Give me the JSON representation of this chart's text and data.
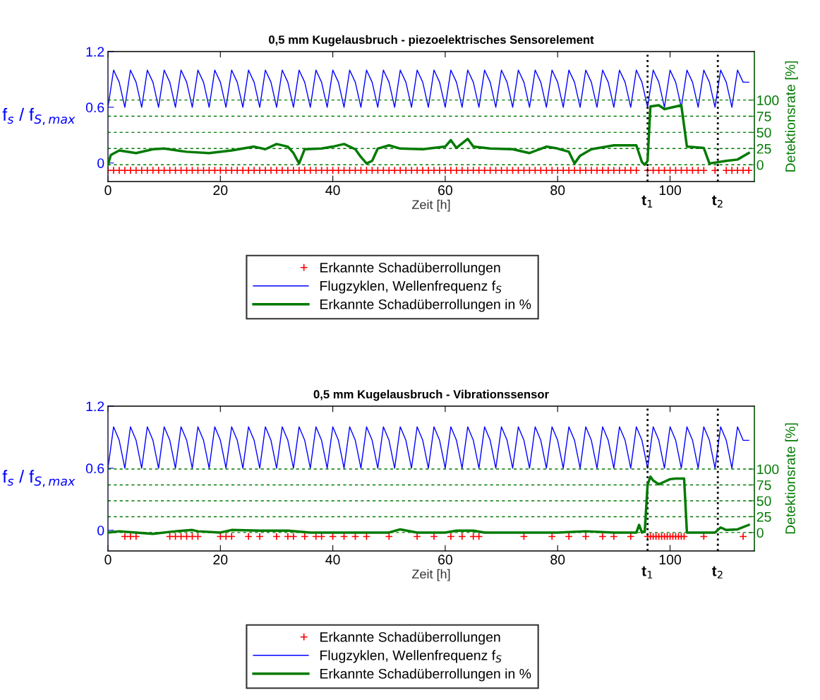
{
  "chart_data": [
    {
      "type": "line",
      "title": "0,5 mm Kugelausbruch - piezoelektrisches Sensorelement",
      "xlabel": "Zeit [h]",
      "ylabel": "f$_{s}$ / f$_{S,max}$",
      "y2label": "Detektionsrate [%]",
      "xlim": [
        0,
        115
      ],
      "xticks": [
        0,
        20,
        40,
        60,
        80,
        100
      ],
      "ylim": [
        -0.2,
        1.2
      ],
      "yticks": [
        0,
        0.6,
        1.2
      ],
      "y2lim": [
        -26,
        175
      ],
      "y2ticks": [
        0,
        25,
        50,
        75,
        100
      ],
      "grid": "y2",
      "legend": "bottom",
      "ref_lines": [
        {
          "axis": "x",
          "value": 96,
          "label": "t$_{1}$",
          "color": "#000000",
          "line_style": "dotted"
        },
        {
          "axis": "x",
          "value": 108.5,
          "label": "t$_{2}$",
          "color": "#000000",
          "line_style": "dotted"
        }
      ],
      "series": [
        {
          "name": "Erkannte Schadüberrollungen",
          "type": "scatter",
          "marker": "cross",
          "color": "#ff0000",
          "x": [
            0,
            1,
            2,
            3,
            4,
            5,
            6,
            7,
            8,
            9,
            10,
            11,
            12,
            13,
            14,
            15,
            16,
            17,
            18,
            19,
            20,
            21,
            22,
            23,
            24,
            25,
            26,
            27,
            28,
            29,
            30,
            31,
            32,
            33,
            34,
            35,
            36,
            37,
            38,
            39,
            40,
            41,
            42,
            43,
            44,
            45,
            46,
            47,
            48,
            49,
            50,
            51,
            52,
            53,
            54,
            55,
            56,
            57,
            58,
            59,
            60,
            61,
            62,
            63,
            64,
            65,
            66,
            67,
            68,
            69,
            70,
            71,
            72,
            73,
            74,
            75,
            76,
            77,
            78,
            79,
            80,
            81,
            82,
            83,
            84,
            85,
            86,
            87,
            88,
            89,
            90,
            91,
            92,
            93,
            94,
            96,
            97,
            98,
            99,
            100,
            101,
            102,
            103,
            104,
            105,
            106,
            108,
            110,
            111,
            112,
            113,
            114
          ],
          "values": [
            -0.08,
            -0.08,
            -0.08,
            -0.08,
            -0.08,
            -0.08,
            -0.08,
            -0.08,
            -0.08,
            -0.08,
            -0.08,
            -0.08,
            -0.08,
            -0.08,
            -0.08,
            -0.08,
            -0.08,
            -0.08,
            -0.08,
            -0.08,
            -0.08,
            -0.08,
            -0.08,
            -0.08,
            -0.08,
            -0.08,
            -0.08,
            -0.08,
            -0.08,
            -0.08,
            -0.08,
            -0.08,
            -0.08,
            -0.08,
            -0.08,
            -0.08,
            -0.08,
            -0.08,
            -0.08,
            -0.08,
            -0.08,
            -0.08,
            -0.08,
            -0.08,
            -0.08,
            -0.08,
            -0.08,
            -0.08,
            -0.08,
            -0.08,
            -0.08,
            -0.08,
            -0.08,
            -0.08,
            -0.08,
            -0.08,
            -0.08,
            -0.08,
            -0.08,
            -0.08,
            -0.08,
            -0.08,
            -0.08,
            -0.08,
            -0.08,
            -0.08,
            -0.08,
            -0.08,
            -0.08,
            -0.08,
            -0.08,
            -0.08,
            -0.08,
            -0.08,
            -0.08,
            -0.08,
            -0.08,
            -0.08,
            -0.08,
            -0.08,
            -0.08,
            -0.08,
            -0.08,
            -0.08,
            -0.08,
            -0.08,
            -0.08,
            -0.08,
            -0.08,
            -0.08,
            -0.08,
            -0.08,
            -0.08,
            -0.08,
            -0.08,
            -0.08,
            -0.08,
            -0.08,
            -0.08,
            -0.08,
            -0.08,
            -0.08,
            -0.08,
            -0.08,
            -0.08,
            -0.08,
            -0.08,
            -0.08,
            -0.08,
            -0.08,
            -0.08,
            -0.08
          ]
        },
        {
          "name": "Flugzyklen, Wellenfrequenz f$_{S}$",
          "type": "line",
          "marker": "none",
          "color": "#0000ff",
          "x": [
            0,
            1,
            2,
            3,
            4,
            5,
            6,
            7,
            8,
            9,
            10,
            11,
            12,
            13,
            14,
            15,
            16,
            17,
            18,
            19,
            20,
            21,
            22,
            23,
            24,
            25,
            26,
            27,
            28,
            29,
            30,
            31,
            32,
            33,
            34,
            35,
            36,
            37,
            38,
            39,
            40,
            41,
            42,
            43,
            44,
            45,
            46,
            47,
            48,
            49,
            50,
            51,
            52,
            53,
            54,
            55,
            56,
            57,
            58,
            59,
            60,
            61,
            62,
            63,
            64,
            65,
            66,
            67,
            68,
            69,
            70,
            71,
            72,
            73,
            74,
            75,
            76,
            77,
            78,
            79,
            80,
            81,
            82,
            83,
            84,
            85,
            86,
            87,
            88,
            89,
            90,
            91,
            92,
            93,
            94,
            95,
            96,
            97,
            98,
            99,
            100,
            101,
            102,
            103,
            104,
            105,
            106,
            107,
            108,
            109,
            110,
            111,
            112,
            113,
            114
          ],
          "values": [
            0.6,
            1.0,
            0.87,
            0.6,
            1.0,
            0.87,
            0.6,
            1.0,
            0.87,
            0.6,
            1.0,
            0.87,
            0.6,
            1.0,
            0.87,
            0.6,
            1.0,
            0.87,
            0.6,
            1.0,
            0.87,
            0.6,
            1.0,
            0.87,
            0.6,
            1.0,
            0.87,
            0.6,
            1.0,
            0.87,
            0.6,
            1.0,
            0.87,
            0.6,
            1.0,
            0.87,
            0.6,
            1.0,
            0.87,
            0.6,
            1.0,
            0.87,
            0.6,
            1.0,
            0.87,
            0.6,
            1.0,
            0.87,
            0.6,
            1.0,
            0.87,
            0.6,
            1.0,
            0.87,
            0.6,
            1.0,
            0.87,
            0.6,
            1.0,
            0.87,
            0.6,
            1.0,
            0.87,
            0.6,
            1.0,
            0.87,
            0.6,
            1.0,
            0.87,
            0.6,
            1.0,
            0.87,
            0.6,
            1.0,
            0.87,
            0.6,
            1.0,
            0.87,
            0.6,
            1.0,
            0.87,
            0.6,
            1.0,
            0.87,
            0.6,
            1.0,
            0.87,
            0.6,
            1.0,
            0.87,
            0.6,
            1.0,
            0.87,
            0.6,
            1.0,
            0.87,
            0.6,
            1.0,
            0.87,
            0.6,
            1.0,
            0.87,
            0.6,
            1.0,
            0.87,
            0.6,
            1.0,
            0.87,
            0.6,
            1.0,
            0.87,
            0.6,
            1.0,
            0.87,
            0.87
          ]
        },
        {
          "name": "Erkannte Schadüberrollungen in %",
          "type": "line",
          "marker": "none",
          "axis": "y2",
          "color": "#007a00",
          "x": [
            0,
            0.5,
            2,
            5,
            8,
            10,
            14,
            18,
            22,
            26,
            28,
            30,
            32,
            33,
            34,
            35,
            38,
            40,
            42,
            44,
            45,
            46,
            47,
            48,
            50,
            52,
            56,
            60,
            61,
            62,
            64,
            65,
            68,
            72,
            75,
            78,
            80,
            82,
            83,
            84,
            86,
            90,
            94,
            95,
            95.5,
            96,
            96.5,
            98,
            99,
            102,
            103,
            106,
            107,
            110,
            112,
            114
          ],
          "values": [
            0,
            15,
            22,
            18,
            24,
            25,
            20,
            18,
            22,
            28,
            24,
            32,
            28,
            18,
            2,
            24,
            25,
            28,
            32,
            24,
            12,
            2,
            6,
            25,
            30,
            25,
            24,
            28,
            38,
            26,
            40,
            28,
            25,
            24,
            18,
            28,
            25,
            20,
            2,
            14,
            24,
            30,
            30,
            4,
            0,
            6,
            90,
            92,
            86,
            92,
            28,
            26,
            2,
            6,
            8,
            18
          ]
        }
      ]
    },
    {
      "type": "line",
      "title": "0,5 mm Kugelausbruch - Vibrationssensor",
      "xlabel": "Zeit [h]",
      "ylabel": "f$_{s}$ / f$_{S,max}$",
      "y2label": "Detektionsrate [%]",
      "xlim": [
        0,
        115
      ],
      "xticks": [
        0,
        20,
        40,
        60,
        80,
        100
      ],
      "ylim": [
        -0.2,
        1.2
      ],
      "yticks": [
        0,
        0.6,
        1.2
      ],
      "y2lim": [
        -29,
        199
      ],
      "y2ticks": [
        0,
        25,
        50,
        75,
        100
      ],
      "grid": "y2",
      "legend": "bottom",
      "ref_lines": [
        {
          "axis": "x",
          "value": 96,
          "label": "t$_{1}$",
          "color": "#000000",
          "line_style": "dotted"
        },
        {
          "axis": "x",
          "value": 108.5,
          "label": "t$_{2}$",
          "color": "#000000",
          "line_style": "dotted"
        }
      ],
      "series": [
        {
          "name": "Erkannte Schadüberrollungen",
          "type": "scatter",
          "marker": "cross",
          "color": "#ff0000",
          "x": [
            3,
            4,
            5,
            11,
            12,
            13,
            14,
            15,
            16,
            20,
            21,
            22,
            25,
            27,
            30,
            32,
            33,
            35,
            37,
            38,
            40,
            42,
            44,
            46,
            50,
            55,
            58,
            61,
            63,
            65,
            66,
            74,
            79,
            82,
            85,
            88,
            90,
            93,
            96,
            96.5,
            97,
            97.5,
            98,
            98.5,
            99,
            99.5,
            100,
            100.5,
            101,
            101.5,
            102,
            102.5,
            106,
            113
          ],
          "values": [
            -0.06,
            -0.06,
            -0.06,
            -0.06,
            -0.06,
            -0.06,
            -0.06,
            -0.06,
            -0.06,
            -0.06,
            -0.06,
            -0.06,
            -0.06,
            -0.06,
            -0.06,
            -0.06,
            -0.06,
            -0.06,
            -0.06,
            -0.06,
            -0.06,
            -0.06,
            -0.06,
            -0.06,
            -0.06,
            -0.06,
            -0.06,
            -0.06,
            -0.06,
            -0.06,
            -0.06,
            -0.06,
            -0.06,
            -0.06,
            -0.06,
            -0.06,
            -0.06,
            -0.06,
            -0.06,
            -0.06,
            -0.06,
            -0.06,
            -0.06,
            -0.06,
            -0.06,
            -0.06,
            -0.06,
            -0.06,
            -0.06,
            -0.06,
            -0.06,
            -0.06,
            -0.06,
            -0.06
          ]
        },
        {
          "name": "Flugzyklen, Wellenfrequenz f$_{S}$",
          "type": "line",
          "marker": "none",
          "color": "#0000ff",
          "x": [
            0,
            1,
            2,
            3,
            4,
            5,
            6,
            7,
            8,
            9,
            10,
            11,
            12,
            13,
            14,
            15,
            16,
            17,
            18,
            19,
            20,
            21,
            22,
            23,
            24,
            25,
            26,
            27,
            28,
            29,
            30,
            31,
            32,
            33,
            34,
            35,
            36,
            37,
            38,
            39,
            40,
            41,
            42,
            43,
            44,
            45,
            46,
            47,
            48,
            49,
            50,
            51,
            52,
            53,
            54,
            55,
            56,
            57,
            58,
            59,
            60,
            61,
            62,
            63,
            64,
            65,
            66,
            67,
            68,
            69,
            70,
            71,
            72,
            73,
            74,
            75,
            76,
            77,
            78,
            79,
            80,
            81,
            82,
            83,
            84,
            85,
            86,
            87,
            88,
            89,
            90,
            91,
            92,
            93,
            94,
            95,
            96,
            97,
            98,
            99,
            100,
            101,
            102,
            103,
            104,
            105,
            106,
            107,
            108,
            109,
            110,
            111,
            112,
            113,
            114
          ],
          "values": [
            0.6,
            1.0,
            0.87,
            0.6,
            1.0,
            0.87,
            0.6,
            1.0,
            0.87,
            0.6,
            1.0,
            0.87,
            0.6,
            1.0,
            0.87,
            0.6,
            1.0,
            0.87,
            0.6,
            1.0,
            0.87,
            0.6,
            1.0,
            0.87,
            0.6,
            1.0,
            0.87,
            0.6,
            1.0,
            0.87,
            0.6,
            1.0,
            0.87,
            0.6,
            1.0,
            0.87,
            0.6,
            1.0,
            0.87,
            0.6,
            1.0,
            0.87,
            0.6,
            1.0,
            0.87,
            0.6,
            1.0,
            0.87,
            0.6,
            1.0,
            0.87,
            0.6,
            1.0,
            0.87,
            0.6,
            1.0,
            0.87,
            0.6,
            1.0,
            0.87,
            0.6,
            1.0,
            0.87,
            0.6,
            1.0,
            0.87,
            0.6,
            1.0,
            0.87,
            0.6,
            1.0,
            0.87,
            0.6,
            1.0,
            0.87,
            0.6,
            1.0,
            0.87,
            0.6,
            1.0,
            0.87,
            0.6,
            1.0,
            0.87,
            0.6,
            1.0,
            0.87,
            0.6,
            1.0,
            0.87,
            0.6,
            1.0,
            0.87,
            0.6,
            1.0,
            0.87,
            0.6,
            1.0,
            0.87,
            0.6,
            1.0,
            0.87,
            0.6,
            1.0,
            0.87,
            0.6,
            1.0,
            0.87,
            0.6,
            1.0,
            0.87,
            0.6,
            1.0,
            0.87,
            0.87
          ]
        },
        {
          "name": "Erkannte Schadüberrollungen in %",
          "type": "line",
          "marker": "none",
          "axis": "y2",
          "color": "#007a00",
          "x": [
            0,
            2,
            5,
            8,
            12,
            15,
            16,
            20,
            22,
            27,
            32,
            36,
            40,
            45,
            50,
            52,
            55,
            60,
            62,
            65,
            67,
            70,
            75,
            80,
            85,
            90,
            94,
            94.5,
            95,
            95.5,
            96,
            96.5,
            97,
            98,
            99,
            100,
            101,
            102.5,
            103,
            105,
            108,
            109,
            110,
            112,
            114
          ],
          "values": [
            0,
            2,
            0,
            -2,
            2,
            4,
            2,
            0,
            4,
            3,
            3,
            0,
            0,
            0,
            0,
            5,
            0,
            0,
            3,
            3,
            0,
            0,
            0,
            0,
            2,
            0,
            0,
            12,
            0,
            2,
            75,
            88,
            82,
            76,
            80,
            84,
            85,
            85,
            0,
            0,
            0,
            8,
            4,
            5,
            12
          ]
        }
      ]
    }
  ]
}
